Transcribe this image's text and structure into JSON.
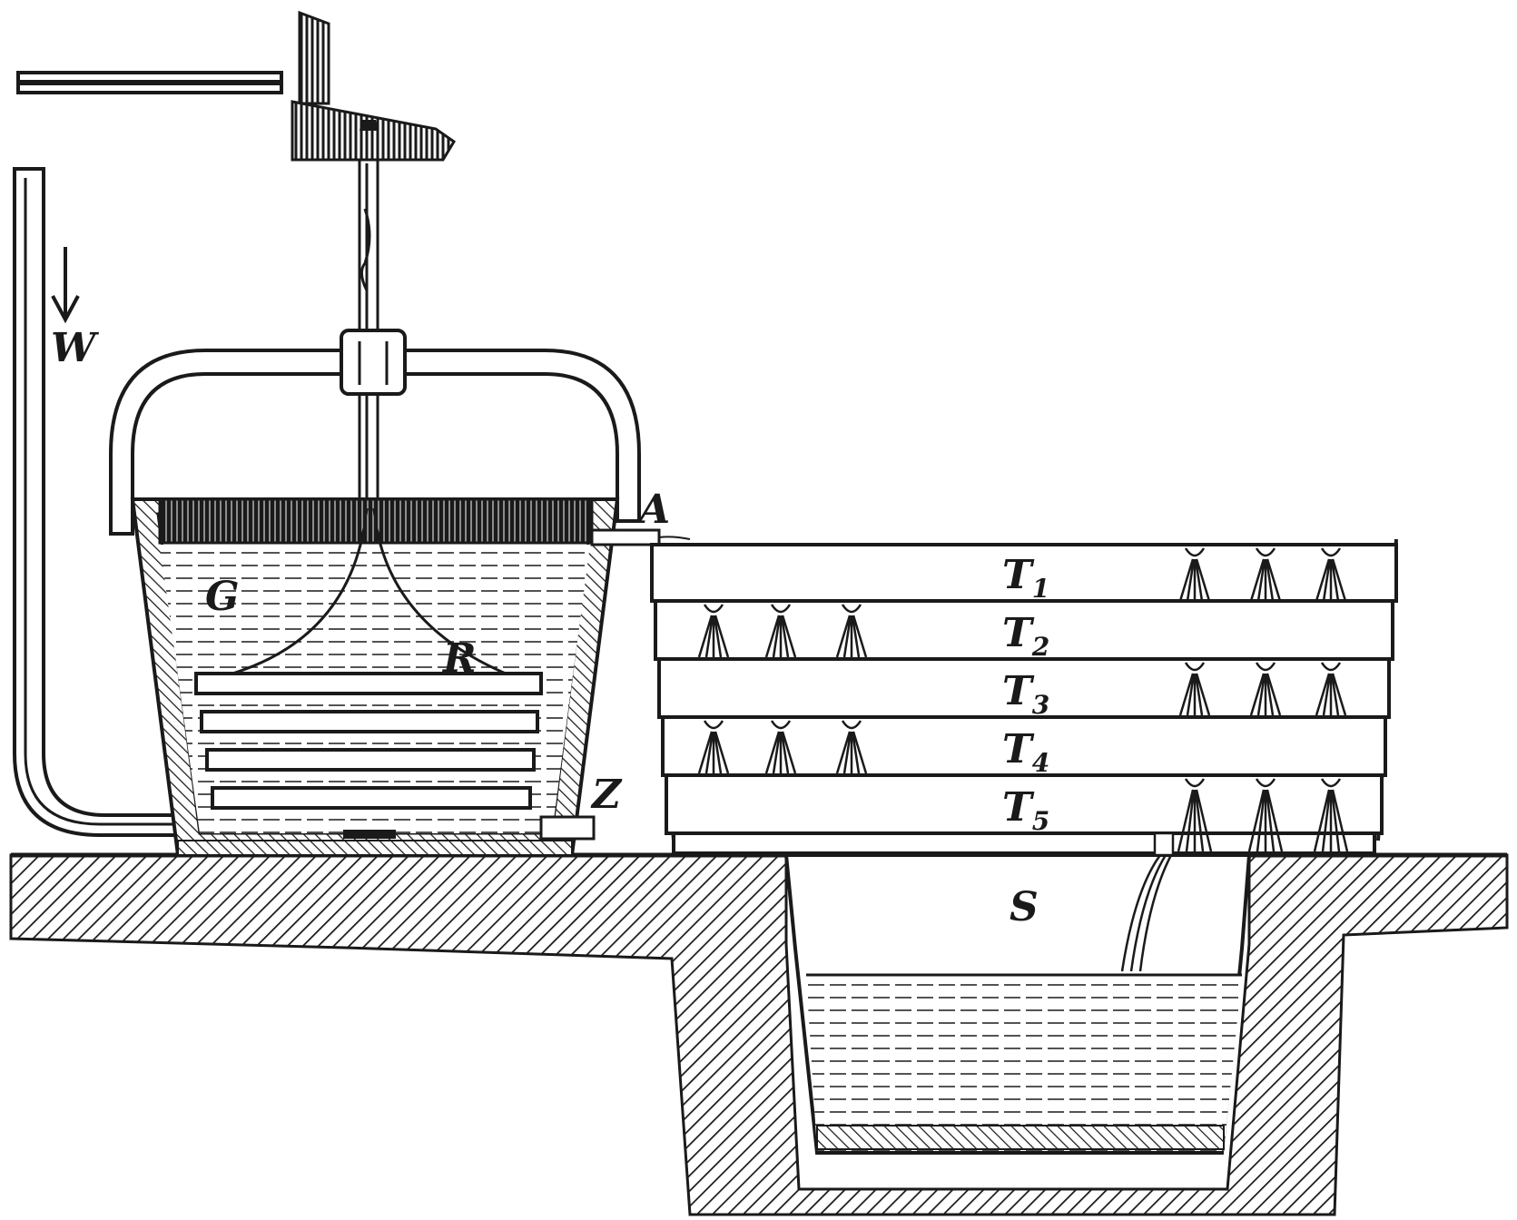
{
  "diagram": {
    "labels": {
      "W": "W",
      "A": "A",
      "G": "G",
      "R": "R",
      "Z": "Z",
      "S": "S"
    },
    "trays": [
      {
        "letter": "T",
        "index": "1"
      },
      {
        "letter": "T",
        "index": "2"
      },
      {
        "letter": "T",
        "index": "3"
      },
      {
        "letter": "T",
        "index": "4"
      },
      {
        "letter": "T",
        "index": "5"
      }
    ],
    "colors": {
      "ink": "#1a1a1a",
      "paper": "#ffffff"
    }
  }
}
